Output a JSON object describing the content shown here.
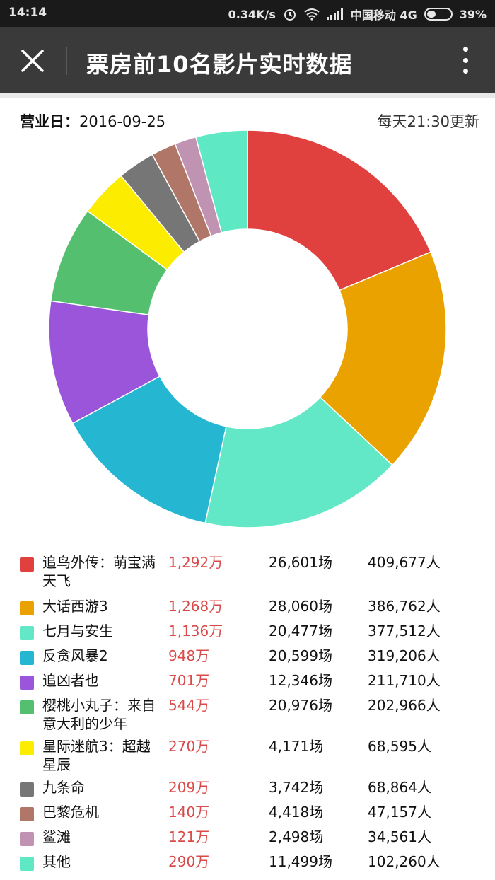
{
  "status_bar": {
    "time": "14:14",
    "speed": "0.34K/s",
    "carrier": "中国移动 4G",
    "battery": "39%",
    "battery_level": 0.39
  },
  "header": {
    "title": "票房前10名影片实时数据",
    "close_icon": "close-icon",
    "more_icon": "more-vertical-icon"
  },
  "info": {
    "date_label": "营业日：",
    "date_value": "2016-09-25",
    "update_note": "每天21:30更新"
  },
  "chart_data": {
    "type": "pie",
    "donut": true,
    "categories": [
      "追鸟外传：萌宝满天飞",
      "大话西游3",
      "七月与安生",
      "反贪风暴2",
      "追凶者也",
      "樱桃小丸子：来自意大利的少年",
      "星际迷航3：超越星辰",
      "九条命",
      "巴黎危机",
      "鲨滩",
      "其他"
    ],
    "values": [
      1292,
      1268,
      1136,
      948,
      701,
      544,
      270,
      209,
      140,
      121,
      290
    ],
    "unit": "万",
    "colors": [
      "#e0403e",
      "#e9a200",
      "#62e8c6",
      "#25b6d2",
      "#9b55db",
      "#55bf70",
      "#fbec00",
      "#767676",
      "#b07668",
      "#c193b3",
      "#5fe8c4"
    ]
  },
  "legend": [
    {
      "name": "追鸟外传：萌宝满天飞",
      "revenue": "1,292万",
      "shows": "26,601场",
      "people": "409,677人"
    },
    {
      "name": "大话西游3",
      "revenue": "1,268万",
      "shows": "28,060场",
      "people": "386,762人"
    },
    {
      "name": "七月与安生",
      "revenue": "1,136万",
      "shows": "20,477场",
      "people": "377,512人"
    },
    {
      "name": "反贪风暴2",
      "revenue": "948万",
      "shows": "20,599场",
      "people": "319,206人"
    },
    {
      "name": "追凶者也",
      "revenue": "701万",
      "shows": "12,346场",
      "people": "211,710人"
    },
    {
      "name": "樱桃小丸子：来自意大利的少年",
      "revenue": "544万",
      "shows": "20,976场",
      "people": "202,966人"
    },
    {
      "name": "星际迷航3：超越星辰",
      "revenue": "270万",
      "shows": "4,171场",
      "people": "68,595人"
    },
    {
      "name": "九条命",
      "revenue": "209万",
      "shows": "3,742场",
      "people": "68,864人"
    },
    {
      "name": "巴黎危机",
      "revenue": "140万",
      "shows": "4,418场",
      "people": "47,157人"
    },
    {
      "name": "鲨滩",
      "revenue": "121万",
      "shows": "2,498场",
      "people": "34,561人"
    },
    {
      "name": "其他",
      "revenue": "290万",
      "shows": "11,499场",
      "people": "102,260人"
    }
  ]
}
